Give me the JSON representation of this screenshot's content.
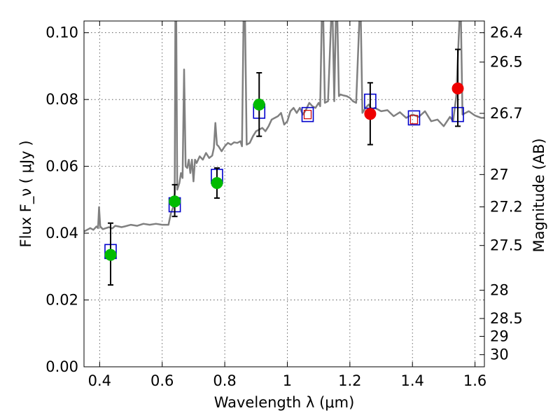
{
  "chart_data": {
    "type": "scatter",
    "xlabel": "Wavelength  λ (μm)",
    "ylabel": "Flux  F_ν  ( μJy )",
    "y2label": "Magnitude (AB)",
    "xlim": [
      0.35,
      1.63
    ],
    "ylim": [
      0.0,
      0.1035
    ],
    "grid": true,
    "x_ticks": [
      {
        "value": 0.4,
        "label": "0.4"
      },
      {
        "value": 0.6,
        "label": "0.6"
      },
      {
        "value": 0.8,
        "label": "0.8"
      },
      {
        "value": 1.0,
        "label": "1"
      },
      {
        "value": 1.2,
        "label": "1.2"
      },
      {
        "value": 1.4,
        "label": "1.4"
      },
      {
        "value": 1.6,
        "label": "1.6"
      }
    ],
    "y_ticks": [
      {
        "value": 0.0,
        "label": "0.00"
      },
      {
        "value": 0.02,
        "label": "0.02"
      },
      {
        "value": 0.04,
        "label": "0.04"
      },
      {
        "value": 0.06,
        "label": "0.06"
      },
      {
        "value": 0.08,
        "label": "0.08"
      },
      {
        "value": 0.1,
        "label": "0.10"
      }
    ],
    "y2_ticks": [
      {
        "mag": 26.4,
        "label": "26.4"
      },
      {
        "mag": 26.5,
        "label": "26.5"
      },
      {
        "mag": 26.7,
        "label": "26.7"
      },
      {
        "mag": 27,
        "label": "27"
      },
      {
        "mag": 27.2,
        "label": "27.2"
      },
      {
        "mag": 27.5,
        "label": "27.5"
      },
      {
        "mag": 28,
        "label": "28"
      },
      {
        "mag": 28.5,
        "label": "28.5"
      },
      {
        "mag": 29,
        "label": "29"
      },
      {
        "mag": 30,
        "label": "30"
      }
    ],
    "series": [
      {
        "kind": "line",
        "color": "#808080",
        "points": [
          [
            0.35,
            0.0405
          ],
          [
            0.36,
            0.041
          ],
          [
            0.37,
            0.0415
          ],
          [
            0.38,
            0.041
          ],
          [
            0.39,
            0.042
          ],
          [
            0.395,
            0.0415
          ],
          [
            0.398,
            0.0478
          ],
          [
            0.402,
            0.042
          ],
          [
            0.41,
            0.0412
          ],
          [
            0.42,
            0.0415
          ],
          [
            0.43,
            0.0418
          ],
          [
            0.44,
            0.0414
          ],
          [
            0.45,
            0.0422
          ],
          [
            0.46,
            0.042
          ],
          [
            0.47,
            0.0418
          ],
          [
            0.48,
            0.042
          ],
          [
            0.5,
            0.0425
          ],
          [
            0.52,
            0.0422
          ],
          [
            0.54,
            0.0428
          ],
          [
            0.56,
            0.0425
          ],
          [
            0.58,
            0.0428
          ],
          [
            0.6,
            0.0425
          ],
          [
            0.62,
            0.0425
          ],
          [
            0.628,
            0.046
          ],
          [
            0.635,
            0.0478
          ],
          [
            0.64,
            0.052
          ],
          [
            0.642,
            0.1035
          ],
          [
            0.645,
            0.1035
          ],
          [
            0.648,
            0.053
          ],
          [
            0.655,
            0.055
          ],
          [
            0.66,
            0.058
          ],
          [
            0.665,
            0.0565
          ],
          [
            0.67,
            0.089
          ],
          [
            0.675,
            0.06
          ],
          [
            0.68,
            0.0595
          ],
          [
            0.685,
            0.062
          ],
          [
            0.69,
            0.058
          ],
          [
            0.695,
            0.062
          ],
          [
            0.7,
            0.0555
          ],
          [
            0.705,
            0.062
          ],
          [
            0.71,
            0.061
          ],
          [
            0.72,
            0.063
          ],
          [
            0.73,
            0.062
          ],
          [
            0.74,
            0.064
          ],
          [
            0.75,
            0.0625
          ],
          [
            0.76,
            0.0632
          ],
          [
            0.765,
            0.0655
          ],
          [
            0.77,
            0.073
          ],
          [
            0.775,
            0.0665
          ],
          [
            0.78,
            0.066
          ],
          [
            0.79,
            0.0645
          ],
          [
            0.8,
            0.066
          ],
          [
            0.81,
            0.067
          ],
          [
            0.82,
            0.0665
          ],
          [
            0.83,
            0.0672
          ],
          [
            0.84,
            0.067
          ],
          [
            0.85,
            0.0675
          ],
          [
            0.855,
            0.066
          ],
          [
            0.86,
            0.1035
          ],
          [
            0.865,
            0.1035
          ],
          [
            0.87,
            0.0665
          ],
          [
            0.88,
            0.067
          ],
          [
            0.89,
            0.069
          ],
          [
            0.9,
            0.0705
          ],
          [
            0.91,
            0.071
          ],
          [
            0.92,
            0.0715
          ],
          [
            0.93,
            0.0705
          ],
          [
            0.94,
            0.072
          ],
          [
            0.95,
            0.074
          ],
          [
            0.96,
            0.0745
          ],
          [
            0.97,
            0.075
          ],
          [
            0.98,
            0.076
          ],
          [
            0.99,
            0.0725
          ],
          [
            1.0,
            0.0735
          ],
          [
            1.01,
            0.0765
          ],
          [
            1.02,
            0.0775
          ],
          [
            1.03,
            0.076
          ],
          [
            1.04,
            0.0775
          ],
          [
            1.05,
            0.0755
          ],
          [
            1.06,
            0.077
          ],
          [
            1.07,
            0.079
          ],
          [
            1.08,
            0.078
          ],
          [
            1.09,
            0.0775
          ],
          [
            1.1,
            0.079
          ],
          [
            1.105,
            0.078
          ],
          [
            1.11,
            0.1035
          ],
          [
            1.115,
            0.1035
          ],
          [
            1.12,
            0.079
          ],
          [
            1.13,
            0.0795
          ],
          [
            1.14,
            0.1035
          ],
          [
            1.145,
            0.1035
          ],
          [
            1.15,
            0.0795
          ],
          [
            1.155,
            0.1035
          ],
          [
            1.16,
            0.1035
          ],
          [
            1.165,
            0.081
          ],
          [
            1.17,
            0.0815
          ],
          [
            1.18,
            0.0812
          ],
          [
            1.19,
            0.081
          ],
          [
            1.2,
            0.0805
          ],
          [
            1.21,
            0.0795
          ],
          [
            1.22,
            0.079
          ],
          [
            1.23,
            0.1035
          ],
          [
            1.235,
            0.1035
          ],
          [
            1.24,
            0.076
          ],
          [
            1.25,
            0.0775
          ],
          [
            1.26,
            0.0785
          ],
          [
            1.27,
            0.077
          ],
          [
            1.28,
            0.0775
          ],
          [
            1.3,
            0.0765
          ],
          [
            1.32,
            0.0768
          ],
          [
            1.34,
            0.075
          ],
          [
            1.36,
            0.0762
          ],
          [
            1.38,
            0.0745
          ],
          [
            1.4,
            0.0755
          ],
          [
            1.42,
            0.0748
          ],
          [
            1.44,
            0.0765
          ],
          [
            1.46,
            0.0735
          ],
          [
            1.48,
            0.074
          ],
          [
            1.5,
            0.072
          ],
          [
            1.52,
            0.0748
          ],
          [
            1.53,
            0.0735
          ],
          [
            1.54,
            0.081
          ],
          [
            1.55,
            0.1035
          ],
          [
            1.555,
            0.1035
          ],
          [
            1.56,
            0.0755
          ],
          [
            1.58,
            0.0765
          ],
          [
            1.6,
            0.0752
          ],
          [
            1.62,
            0.0745
          ],
          [
            1.63,
            0.0745
          ]
        ]
      },
      {
        "kind": "open_square",
        "color": "#0000cc",
        "points": [
          [
            0.435,
            0.0345
          ],
          [
            0.64,
            0.0485
          ],
          [
            0.775,
            0.057
          ],
          [
            0.91,
            0.0765
          ],
          [
            1.065,
            0.0755
          ],
          [
            1.265,
            0.0795
          ],
          [
            1.405,
            0.0745
          ],
          [
            1.545,
            0.0755
          ]
        ]
      },
      {
        "kind": "errorbar",
        "color": "#000000",
        "points": [
          {
            "x": 0.435,
            "low": 0.0245,
            "high": 0.043
          },
          {
            "x": 0.64,
            "low": 0.045,
            "high": 0.0545
          },
          {
            "x": 0.775,
            "low": 0.0505,
            "high": 0.0595
          },
          {
            "x": 0.91,
            "low": 0.069,
            "high": 0.088
          },
          {
            "x": 1.265,
            "low": 0.0665,
            "high": 0.085
          },
          {
            "x": 1.545,
            "low": 0.072,
            "high": 0.095
          }
        ]
      },
      {
        "kind": "filled_circle",
        "color": "#00bb00",
        "points": [
          [
            0.435,
            0.0335
          ],
          [
            0.64,
            0.0495
          ],
          [
            0.775,
            0.055
          ],
          [
            0.91,
            0.0785
          ]
        ]
      },
      {
        "kind": "filled_circle",
        "color": "#ee0000",
        "points": [
          [
            1.265,
            0.0757
          ],
          [
            1.545,
            0.0833
          ]
        ]
      },
      {
        "kind": "small_open_square",
        "color": "#cc0000",
        "points": [
          [
            1.065,
            0.0755
          ],
          [
            1.405,
            0.074
          ]
        ]
      }
    ]
  }
}
